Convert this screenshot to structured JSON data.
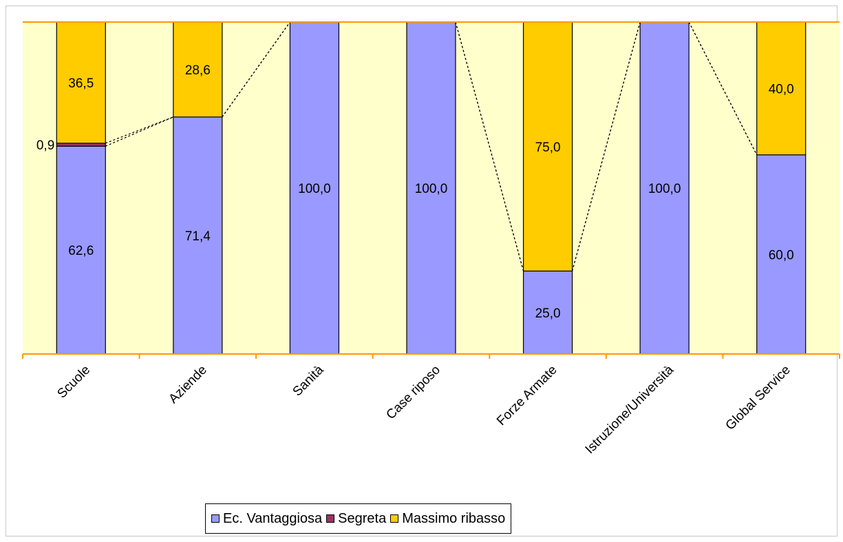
{
  "chart_data": {
    "type": "bar",
    "stacked": true,
    "percent_stacked": true,
    "categories": [
      "Scuole",
      "Aziende",
      "Sanità",
      "Case riposo",
      "Forze Armate",
      "Istruzione/Università",
      "Global Service"
    ],
    "series": [
      {
        "name": "Ec. Vantaggiosa",
        "color": "#9999ff",
        "values": [
          62.6,
          71.4,
          100.0,
          100.0,
          25.0,
          100.0,
          60.0
        ],
        "labels": [
          "62,6",
          "71,4",
          "100,0",
          "100,0",
          "25,0",
          "100,0",
          "60,0"
        ]
      },
      {
        "name": "Segreta",
        "color": "#993366",
        "values": [
          0.9,
          0,
          0,
          0,
          0,
          0,
          0
        ],
        "labels": [
          "0,9",
          "",
          "",
          "",
          "",
          "",
          ""
        ]
      },
      {
        "name": "Massimo ribasso",
        "color": "#ffcc00",
        "values": [
          36.5,
          28.6,
          0,
          0,
          75.0,
          0,
          40.0
        ],
        "labels": [
          "36,5",
          "28,6",
          "",
          "",
          "75,0",
          "",
          "40,0"
        ]
      }
    ],
    "ylim": [
      0,
      100
    ],
    "series_lines": true,
    "plot_background": "#ffffcc",
    "axis_color": "#ff9900",
    "grid": false,
    "legend_position": "bottom",
    "title": "",
    "xlabel": "",
    "ylabel": ""
  }
}
